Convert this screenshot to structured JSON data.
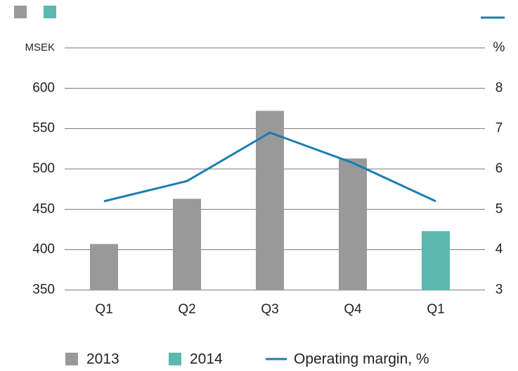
{
  "chart_data": {
    "type": "bar-line",
    "categories": [
      "Q1",
      "Q2",
      "Q3",
      "Q4",
      "Q1"
    ],
    "series": [
      {
        "name": "2013",
        "color": "#999999",
        "values": [
          407,
          463,
          572,
          513,
          null
        ]
      },
      {
        "name": "2014",
        "color": "#5bb8b0",
        "values": [
          null,
          null,
          null,
          null,
          423
        ]
      },
      {
        "name": "Operating margin, %",
        "color": "#1a7db5",
        "axis": "y2",
        "type": "line",
        "values": [
          5.2,
          5.7,
          6.9,
          6.15,
          5.2
        ]
      }
    ],
    "ylim": [
      350,
      650
    ],
    "yticks": [
      350,
      400,
      450,
      500,
      550,
      600,
      {
        "value": 650,
        "label": "MSEK"
      }
    ],
    "y2lim": [
      3,
      9
    ],
    "y2ticks": [
      3,
      4,
      5,
      6,
      7,
      8,
      {
        "value": 9,
        "label": "%"
      }
    ],
    "grid": true
  }
}
